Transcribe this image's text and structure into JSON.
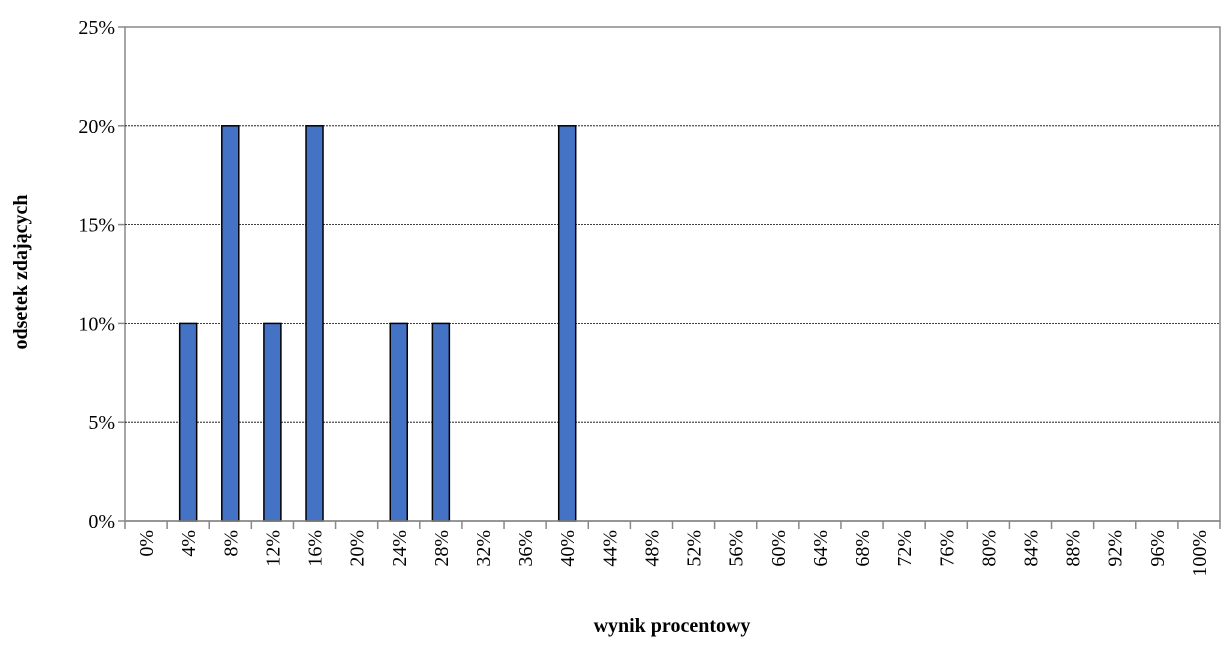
{
  "chart_data": {
    "type": "bar",
    "x_label": "wynik procentowy",
    "y_label": "odsetek zdających",
    "categories": [
      "0%",
      "4%",
      "8%",
      "12%",
      "16%",
      "20%",
      "24%",
      "28%",
      "32%",
      "36%",
      "40%",
      "44%",
      "48%",
      "52%",
      "56%",
      "60%",
      "64%",
      "68%",
      "72%",
      "76%",
      "80%",
      "84%",
      "88%",
      "92%",
      "96%",
      "100%"
    ],
    "values": [
      0,
      10,
      20,
      10,
      20,
      0,
      10,
      10,
      0,
      0,
      20,
      0,
      0,
      0,
      0,
      0,
      0,
      0,
      0,
      0,
      0,
      0,
      0,
      0,
      0,
      0
    ],
    "color": "#4472c4",
    "ylim": [
      0,
      25
    ],
    "yticks": [
      {
        "value": 0,
        "label": "0%"
      },
      {
        "value": 5,
        "label": "5%"
      },
      {
        "value": 10,
        "label": "10%"
      },
      {
        "value": 15,
        "label": "15%"
      },
      {
        "value": 20,
        "label": "20%"
      },
      {
        "value": 25,
        "label": "25%"
      }
    ],
    "grid": true
  }
}
